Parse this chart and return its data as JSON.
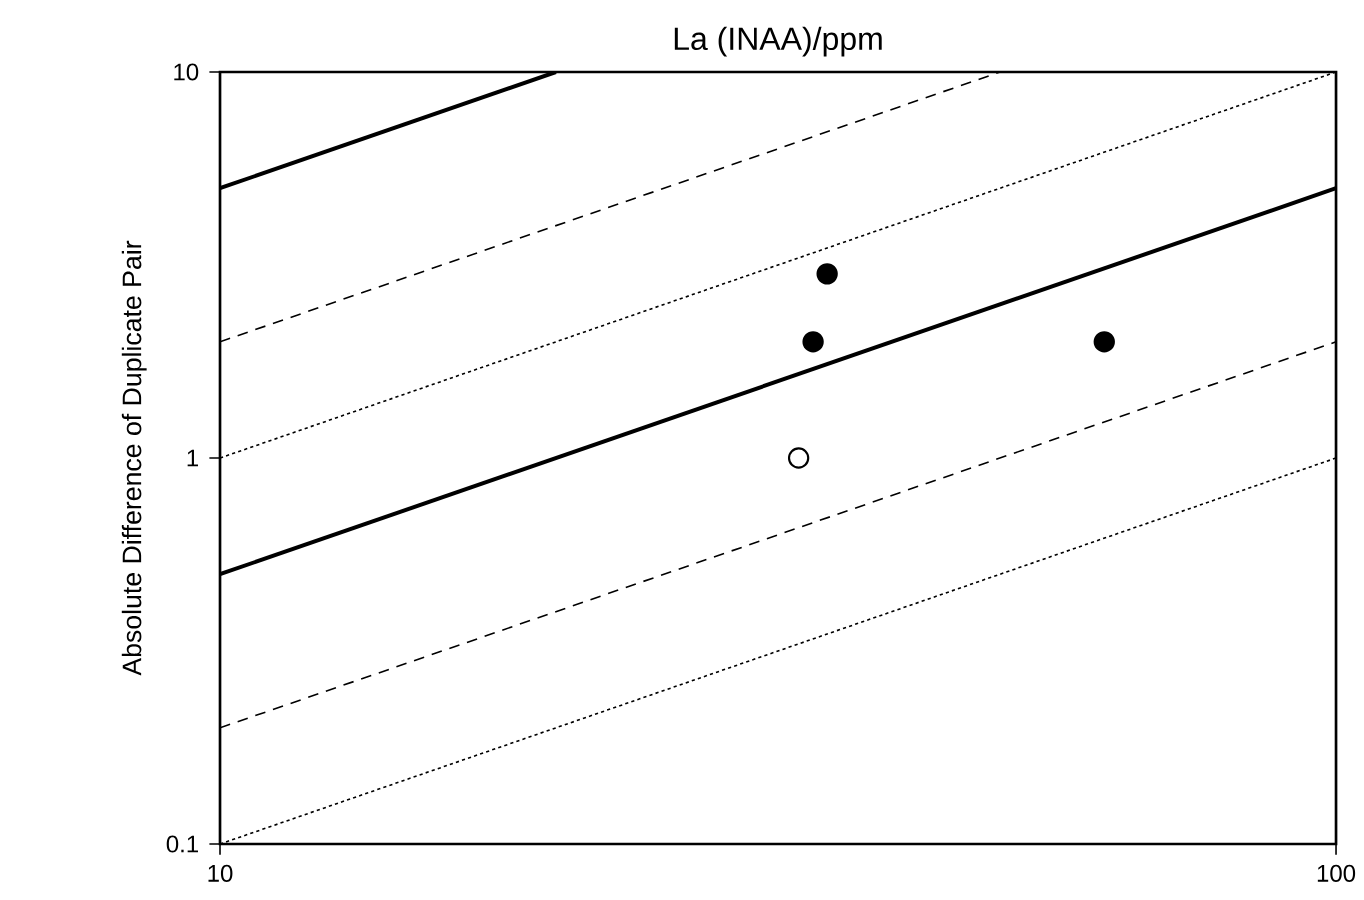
{
  "chart_data": {
    "type": "scatter",
    "title": "La (INAA)/ppm",
    "ylabel": "Absolute Difference of Duplicate Pair",
    "log": "xy",
    "xlim": [
      10,
      100
    ],
    "ylim": [
      0.1,
      10
    ],
    "xticks": [
      10,
      100
    ],
    "yticks": [
      0.1,
      1,
      10
    ],
    "grid": false,
    "series": [
      {
        "type": "line",
        "marker": "none",
        "line_style": "solid",
        "color": "#000000",
        "x": [
          10,
          20
        ],
        "values": [
          5,
          10
        ]
      },
      {
        "type": "line",
        "marker": "none",
        "line_style": "dashed",
        "color": "#000000",
        "x": [
          10,
          50
        ],
        "values": [
          2,
          10
        ]
      },
      {
        "type": "line",
        "marker": "none",
        "line_style": "dotted",
        "color": "#000000",
        "x": [
          10,
          100
        ],
        "values": [
          1,
          10
        ]
      },
      {
        "type": "line",
        "marker": "none",
        "line_style": "solid",
        "color": "#000000",
        "x": [
          10,
          100
        ],
        "values": [
          0.5,
          5
        ]
      },
      {
        "type": "line",
        "marker": "none",
        "line_style": "dashed",
        "color": "#000000",
        "x": [
          10,
          100
        ],
        "values": [
          0.2,
          2
        ]
      },
      {
        "type": "line",
        "marker": "none",
        "line_style": "dotted",
        "color": "#000000",
        "x": [
          10,
          100
        ],
        "values": [
          0.1,
          1
        ]
      },
      {
        "marker": "circle",
        "color": "#000000",
        "x": [
          35,
          34,
          62
        ],
        "values": [
          3,
          2,
          2
        ]
      },
      {
        "marker": "circle",
        "color": "#ffffff",
        "x": [
          33
        ],
        "values": [
          1
        ]
      }
    ]
  }
}
